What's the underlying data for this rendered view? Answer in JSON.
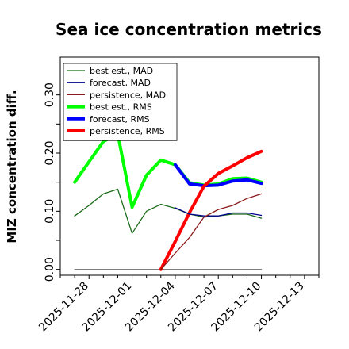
{
  "chart_data": {
    "type": "line",
    "title": "Sea ice concentration metrics",
    "xlabel": "",
    "ylabel": "MIZ concentration diff.",
    "x_tick_labels": [
      "2025-11-28",
      "2025-12-01",
      "2025-12-04",
      "2025-12-07",
      "2025-12-10",
      "2025-12-13"
    ],
    "x_tick_colors": [
      "#000000",
      "#000000",
      "#008000",
      "#000000",
      "#000000",
      "#000000"
    ],
    "y_tick_labels": [
      "0.00",
      "0.10",
      "0.20",
      "0.30"
    ],
    "xlim": [
      "2025-11-26",
      "2025-12-14"
    ],
    "ylim": [
      -0.01,
      0.365
    ],
    "grid": false,
    "legend_position": "top-left",
    "series": [
      {
        "name": "best est., MAD",
        "color": "#1a6b1a",
        "width": 1.3,
        "x": [
          "2025-11-27",
          "2025-11-28",
          "2025-11-29",
          "2025-11-30",
          "2025-12-01",
          "2025-12-02",
          "2025-12-03",
          "2025-12-04",
          "2025-12-05",
          "2025-12-06",
          "2025-12-07",
          "2025-12-08",
          "2025-12-09",
          "2025-12-10"
        ],
        "values": [
          0.092,
          0.11,
          0.13,
          0.138,
          0.062,
          0.1,
          0.112,
          0.105,
          0.095,
          0.09,
          0.092,
          0.095,
          0.095,
          0.088
        ]
      },
      {
        "name": "forecast,  MAD",
        "color": "#00008b",
        "width": 1.3,
        "x": [
          "2025-12-04",
          "2025-12-05",
          "2025-12-06",
          "2025-12-07",
          "2025-12-08",
          "2025-12-09",
          "2025-12-10"
        ],
        "values": [
          0.106,
          0.095,
          0.092,
          0.092,
          0.097,
          0.097,
          0.093
        ]
      },
      {
        "name": "persistence, MAD",
        "color": "#8b1a1a",
        "width": 1.3,
        "x": [
          "2025-12-03",
          "2025-12-04",
          "2025-12-05",
          "2025-12-06",
          "2025-12-07",
          "2025-12-08",
          "2025-12-09",
          "2025-12-10"
        ],
        "values": [
          0.0,
          0.028,
          0.055,
          0.09,
          0.103,
          0.11,
          0.122,
          0.13
        ]
      },
      {
        "name": "best est., RMS",
        "color": "#00ff00",
        "width": 4,
        "x": [
          "2025-11-27",
          "2025-11-28",
          "2025-11-29",
          "2025-11-30",
          "2025-12-01",
          "2025-12-02",
          "2025-12-03",
          "2025-12-04",
          "2025-12-05",
          "2025-12-06",
          "2025-12-07",
          "2025-12-08",
          "2025-12-09",
          "2025-12-10"
        ],
        "values": [
          0.15,
          0.185,
          0.22,
          0.233,
          0.107,
          0.162,
          0.188,
          0.18,
          0.149,
          0.145,
          0.147,
          0.156,
          0.157,
          0.15
        ]
      },
      {
        "name": "forecast,  RMS",
        "color": "#0000ff",
        "width": 4,
        "x": [
          "2025-12-04",
          "2025-12-05",
          "2025-12-06",
          "2025-12-07",
          "2025-12-08",
          "2025-12-09",
          "2025-12-10"
        ],
        "values": [
          0.18,
          0.147,
          0.144,
          0.145,
          0.152,
          0.154,
          0.148
        ]
      },
      {
        "name": "persistence, RMS",
        "color": "#ff0000",
        "width": 4,
        "x": [
          "2025-12-03",
          "2025-12-04",
          "2025-12-05",
          "2025-12-06",
          "2025-12-07",
          "2025-12-08",
          "2025-12-09",
          "2025-12-10"
        ],
        "values": [
          0.0,
          0.048,
          0.098,
          0.143,
          0.165,
          0.178,
          0.192,
          0.203
        ]
      },
      {
        "name": "",
        "color": "#808080",
        "width": 1.3,
        "x": [
          "2025-11-27",
          "2025-12-10"
        ],
        "values": [
          0.0,
          0.0
        ]
      }
    ]
  }
}
